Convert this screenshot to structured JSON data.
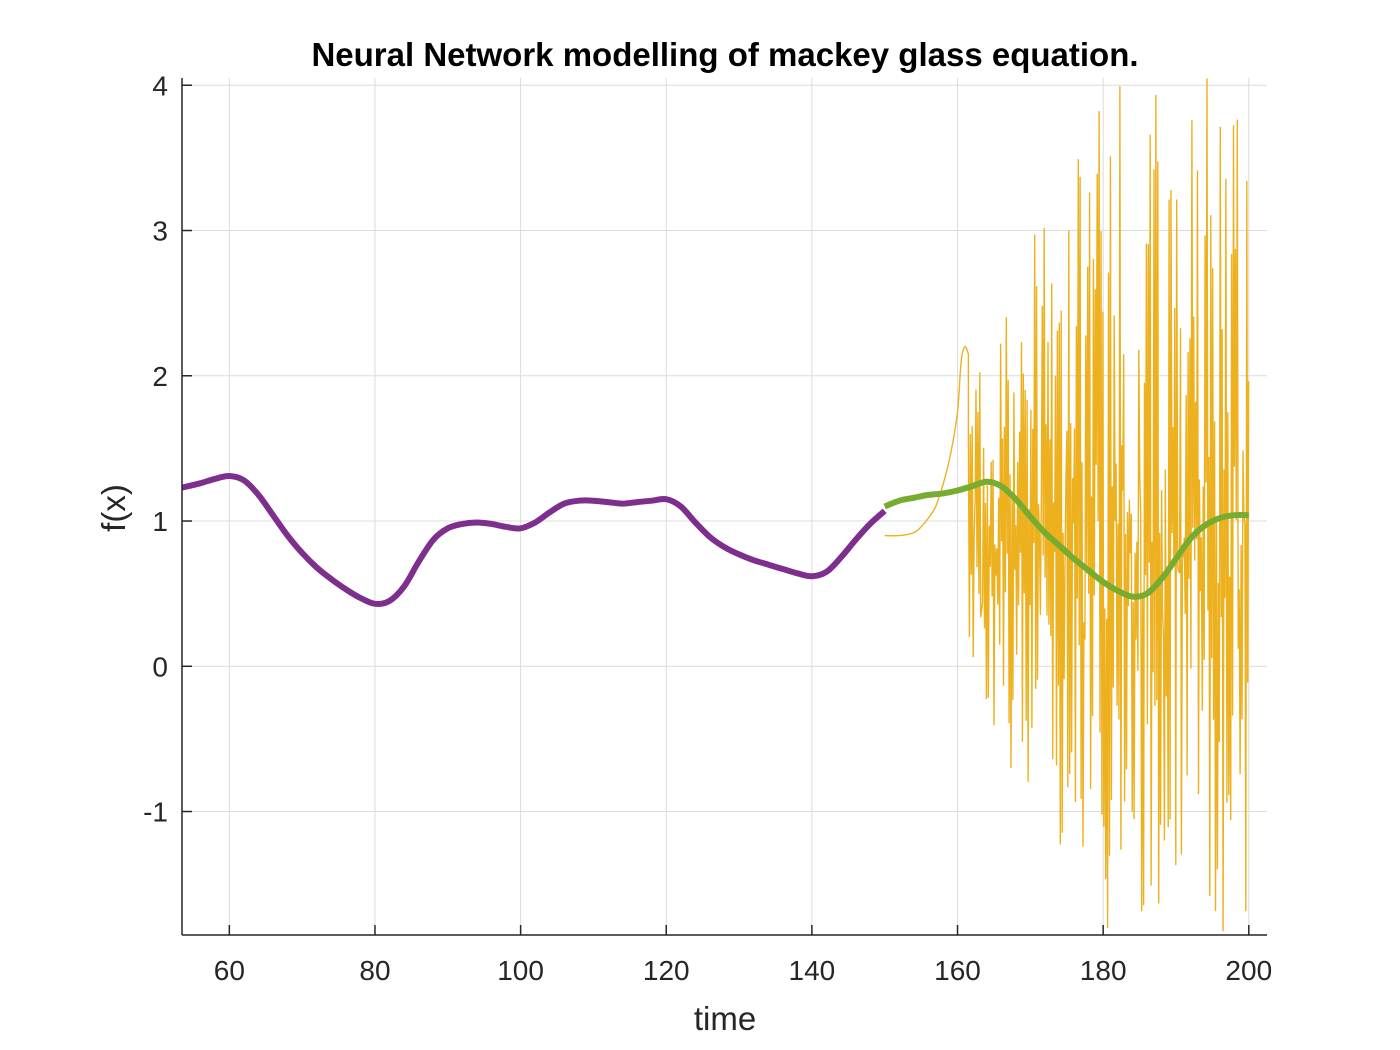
{
  "chart_data": {
    "type": "line",
    "title": "Neural Network modelling of mackey glass equation.",
    "xlabel": "time",
    "ylabel": "f(x)",
    "xlim": [
      53.5,
      202.5
    ],
    "ylim": [
      -1.85,
      4.05
    ],
    "grid": true,
    "x_ticks": [
      "60",
      "80",
      "100",
      "120",
      "140",
      "160",
      "180",
      "200"
    ],
    "y_ticks": [
      "-1",
      "0",
      "1",
      "2",
      "3",
      "4"
    ],
    "colors": {
      "purple": "#7E2F8E",
      "green": "#77AC30",
      "yellow": "#EDB120",
      "grid": "#dcdcdc",
      "axis": "#262626"
    },
    "series": [
      {
        "color": "#7E2F8E",
        "style": "thick",
        "x": [
          53.5,
          56,
          58,
          60,
          62,
          64,
          66,
          68,
          70,
          72,
          74,
          76,
          78,
          80,
          82,
          84,
          86,
          88,
          90,
          92,
          94,
          96,
          98,
          100,
          102,
          104,
          106,
          108,
          110,
          112,
          114,
          116,
          118,
          120,
          122,
          124,
          126,
          128,
          130,
          132,
          134,
          136,
          138,
          140,
          142,
          144,
          146,
          148,
          150
        ],
        "y": [
          1.23,
          1.26,
          1.29,
          1.31,
          1.28,
          1.18,
          1.04,
          0.9,
          0.78,
          0.68,
          0.6,
          0.53,
          0.47,
          0.43,
          0.45,
          0.55,
          0.72,
          0.87,
          0.95,
          0.98,
          0.99,
          0.98,
          0.96,
          0.95,
          0.99,
          1.06,
          1.12,
          1.14,
          1.14,
          1.13,
          1.12,
          1.13,
          1.14,
          1.15,
          1.1,
          0.99,
          0.89,
          0.82,
          0.77,
          0.73,
          0.7,
          0.67,
          0.64,
          0.62,
          0.65,
          0.75,
          0.87,
          0.98,
          1.07
        ]
      },
      {
        "color": "#77AC30",
        "style": "thick",
        "x": [
          150,
          152,
          154,
          156,
          158,
          160,
          162,
          164,
          166,
          168,
          170,
          172,
          174,
          176,
          178,
          180,
          182,
          184,
          186,
          188,
          190,
          192,
          194,
          196,
          198,
          200
        ],
        "y": [
          1.1,
          1.14,
          1.16,
          1.18,
          1.19,
          1.21,
          1.24,
          1.27,
          1.24,
          1.15,
          1.03,
          0.92,
          0.83,
          0.74,
          0.66,
          0.58,
          0.52,
          0.48,
          0.5,
          0.6,
          0.74,
          0.88,
          0.97,
          1.02,
          1.04,
          1.04
        ]
      },
      {
        "color": "#EDB120",
        "style": "thin",
        "x": [
          150,
          152,
          154,
          155,
          156,
          157,
          158,
          159,
          160,
          160.5,
          161,
          161.5
        ],
        "y": [
          0.9,
          0.9,
          0.92,
          0.96,
          1.02,
          1.1,
          1.25,
          1.45,
          1.75,
          2.1,
          2.2,
          2.15
        ],
        "oscillation": {
          "x_start": 161.5,
          "x_end": 200,
          "upper_envelope_max": 4.05,
          "lower_envelope_min": -1.85
        }
      }
    ]
  }
}
